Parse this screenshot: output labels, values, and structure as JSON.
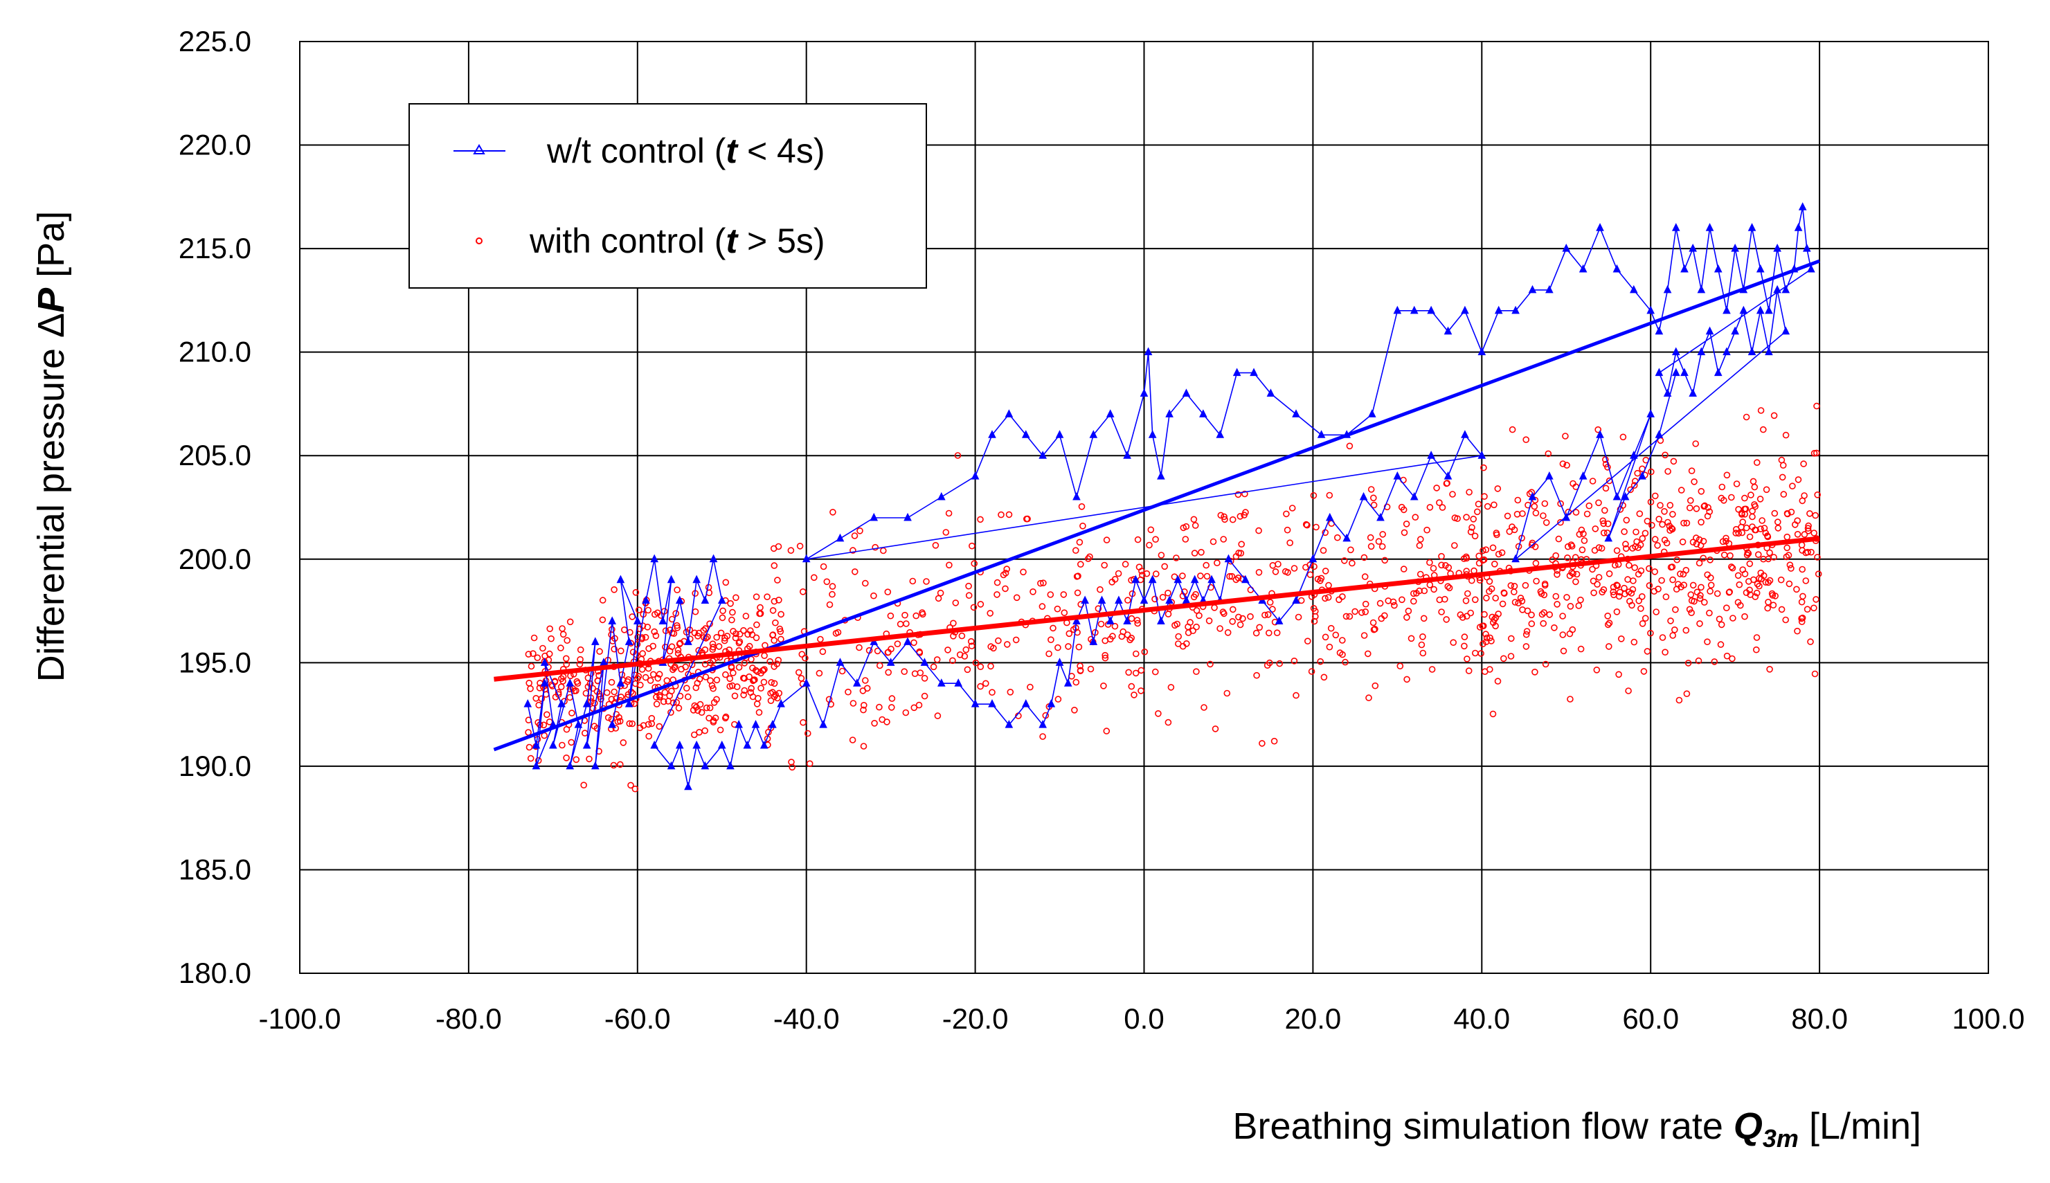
{
  "chart_data": {
    "type": "scatter",
    "xlabel": {
      "prefix": "Breathing simulation flow rate ",
      "symbol": "Q",
      "subscript": "3m",
      "unit": " [L/min]"
    },
    "ylabel": {
      "prefix": "Differential pressure Δ",
      "symbol": "P",
      "unit": " [Pa]"
    },
    "xlim": [
      -100,
      100
    ],
    "ylim": [
      180,
      225
    ],
    "xticks": [
      "-100.0",
      "-80.0",
      "-60.0",
      "-40.0",
      "-20.0",
      "0.0",
      "20.0",
      "40.0",
      "60.0",
      "80.0",
      "100.0"
    ],
    "yticks": [
      "180.0",
      "185.0",
      "190.0",
      "195.0",
      "200.0",
      "205.0",
      "210.0",
      "215.0",
      "220.0",
      "225.0"
    ],
    "grid": true,
    "legend_position": "top-left",
    "series": [
      {
        "name": "w/t control",
        "legend": {
          "prefix": "w/t control (",
          "var": "t",
          "suffix": " < 4s)"
        },
        "color": "#0000ff",
        "marker": "triangle",
        "line": true,
        "points": [
          [
            -73,
            193
          ],
          [
            -72,
            191
          ],
          [
            -71,
            194
          ],
          [
            -72,
            190
          ],
          [
            -70,
            192
          ],
          [
            -71,
            195
          ],
          [
            -69,
            193
          ],
          [
            -70,
            191
          ],
          [
            -68,
            194
          ],
          [
            -67,
            192
          ],
          [
            -68,
            190
          ],
          [
            -66,
            193
          ],
          [
            -65,
            196
          ],
          [
            -66,
            191
          ],
          [
            -64,
            195
          ],
          [
            -65,
            190
          ],
          [
            -63,
            197
          ],
          [
            -62,
            194
          ],
          [
            -63,
            192
          ],
          [
            -61,
            196
          ],
          [
            -62,
            199
          ],
          [
            -60,
            197
          ],
          [
            -61,
            193
          ],
          [
            -59,
            198
          ],
          [
            -58,
            200
          ],
          [
            -57,
            197
          ],
          [
            -56,
            199
          ],
          [
            -57,
            195
          ],
          [
            -55,
            198
          ],
          [
            -54,
            196
          ],
          [
            -53,
            199
          ],
          [
            -52,
            198
          ],
          [
            -51,
            200
          ],
          [
            -50,
            198
          ],
          [
            -58,
            191
          ],
          [
            -56,
            190
          ],
          [
            -55,
            191
          ],
          [
            -54,
            189
          ],
          [
            -53,
            191
          ],
          [
            -52,
            190
          ],
          [
            -50,
            191
          ],
          [
            -49,
            190
          ],
          [
            -48,
            192
          ],
          [
            -47,
            191
          ],
          [
            -46,
            192
          ],
          [
            -45,
            191
          ],
          [
            -44,
            192
          ],
          [
            -43,
            193
          ],
          [
            -40,
            194
          ],
          [
            -38,
            192
          ],
          [
            -36,
            195
          ],
          [
            -34,
            194
          ],
          [
            -32,
            196
          ],
          [
            -30,
            195
          ],
          [
            -28,
            196
          ],
          [
            -26,
            195
          ],
          [
            -24,
            194
          ],
          [
            -22,
            194
          ],
          [
            -20,
            193
          ],
          [
            -18,
            193
          ],
          [
            -16,
            192
          ],
          [
            -14,
            193
          ],
          [
            -12,
            192
          ],
          [
            -11,
            193
          ],
          [
            -10,
            195
          ],
          [
            -9,
            194
          ],
          [
            -8,
            197
          ],
          [
            -7,
            198
          ],
          [
            -6,
            196
          ],
          [
            -5,
            198
          ],
          [
            -4,
            197
          ],
          [
            -3,
            198
          ],
          [
            -2,
            197
          ],
          [
            -1,
            199
          ],
          [
            0,
            198
          ],
          [
            1,
            199
          ],
          [
            2,
            197
          ],
          [
            3,
            198
          ],
          [
            4,
            199
          ],
          [
            5,
            198
          ],
          [
            6,
            199
          ],
          [
            7,
            198
          ],
          [
            8,
            199
          ],
          [
            9,
            198
          ],
          [
            10,
            200
          ],
          [
            12,
            199
          ],
          [
            14,
            198
          ],
          [
            16,
            197
          ],
          [
            18,
            198
          ],
          [
            20,
            200
          ],
          [
            22,
            202
          ],
          [
            24,
            201
          ],
          [
            26,
            203
          ],
          [
            28,
            202
          ],
          [
            30,
            204
          ],
          [
            32,
            203
          ],
          [
            34,
            205
          ],
          [
            36,
            204
          ],
          [
            38,
            206
          ],
          [
            40,
            205
          ],
          [
            -40,
            200
          ],
          [
            -36,
            201
          ],
          [
            -32,
            202
          ],
          [
            -28,
            202
          ],
          [
            -24,
            203
          ],
          [
            -20,
            204
          ],
          [
            -18,
            206
          ],
          [
            -16,
            207
          ],
          [
            -14,
            206
          ],
          [
            -12,
            205
          ],
          [
            -10,
            206
          ],
          [
            -8,
            203
          ],
          [
            -6,
            206
          ],
          [
            -4,
            207
          ],
          [
            -2,
            205
          ],
          [
            0,
            208
          ],
          [
            0.5,
            210
          ],
          [
            1,
            206
          ],
          [
            2,
            204
          ],
          [
            3,
            207
          ],
          [
            5,
            208
          ],
          [
            7,
            207
          ],
          [
            9,
            206
          ],
          [
            11,
            209
          ],
          [
            13,
            209
          ],
          [
            15,
            208
          ],
          [
            18,
            207
          ],
          [
            21,
            206
          ],
          [
            24,
            206
          ],
          [
            27,
            207
          ],
          [
            30,
            212
          ],
          [
            32,
            212
          ],
          [
            34,
            212
          ],
          [
            36,
            211
          ],
          [
            38,
            212
          ],
          [
            40,
            210
          ],
          [
            42,
            212
          ],
          [
            44,
            212
          ],
          [
            46,
            213
          ],
          [
            48,
            213
          ],
          [
            50,
            215
          ],
          [
            52,
            214
          ],
          [
            54,
            216
          ],
          [
            56,
            214
          ],
          [
            58,
            213
          ],
          [
            60,
            212
          ],
          [
            61,
            211
          ],
          [
            62,
            213
          ],
          [
            63,
            216
          ],
          [
            64,
            214
          ],
          [
            65,
            215
          ],
          [
            66,
            213
          ],
          [
            67,
            216
          ],
          [
            68,
            214
          ],
          [
            69,
            212
          ],
          [
            70,
            215
          ],
          [
            71,
            213
          ],
          [
            72,
            216
          ],
          [
            73,
            214
          ],
          [
            74,
            212
          ],
          [
            75,
            215
          ],
          [
            76,
            213
          ],
          [
            77,
            214
          ],
          [
            77.5,
            216
          ],
          [
            78,
            217
          ],
          [
            78.5,
            215
          ],
          [
            79,
            214
          ],
          [
            61,
            209
          ],
          [
            62,
            208
          ],
          [
            63,
            210
          ],
          [
            64,
            209
          ],
          [
            65,
            208
          ],
          [
            66,
            210
          ],
          [
            67,
            211
          ],
          [
            68,
            209
          ],
          [
            69,
            210
          ],
          [
            70,
            211
          ],
          [
            71,
            212
          ],
          [
            72,
            210
          ],
          [
            73,
            212
          ],
          [
            74,
            210
          ],
          [
            75,
            213
          ],
          [
            76,
            211
          ],
          [
            44,
            200
          ],
          [
            46,
            203
          ],
          [
            48,
            204
          ],
          [
            50,
            202
          ],
          [
            52,
            204
          ],
          [
            54,
            206
          ],
          [
            56,
            203
          ],
          [
            58,
            205
          ],
          [
            60,
            207
          ],
          [
            55,
            201
          ],
          [
            57,
            203
          ],
          [
            59,
            204
          ],
          [
            61,
            206
          ],
          [
            63,
            209
          ]
        ],
        "fit": [
          [
            -77,
            190.8
          ],
          [
            80,
            214.4
          ]
        ]
      },
      {
        "name": "with control",
        "legend": {
          "prefix": "with control (",
          "var": "t",
          "suffix": " > 5s)"
        },
        "color": "#ff0000",
        "marker": "circle",
        "line": false,
        "n_points": 1500,
        "fit": [
          [
            -77,
            194.2
          ],
          [
            80,
            201.0
          ]
        ]
      }
    ]
  }
}
